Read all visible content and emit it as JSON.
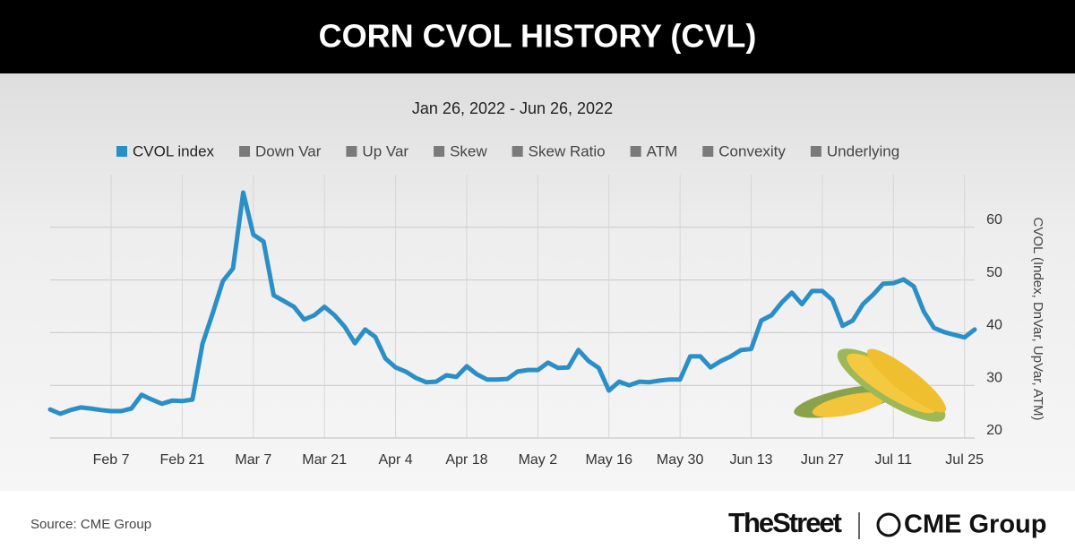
{
  "chart_data": {
    "type": "line",
    "title": "CORN CVOL HISTORY (CVL)",
    "subtitle": "Jan 26, 2022 - Jun 26, 2022",
    "y_label": "CVOL (Index, DnVar, UpVar, ATM)",
    "categories": [
      null,
      null,
      null,
      null,
      null,
      null,
      "Feb 7",
      null,
      null,
      null,
      null,
      null,
      null,
      "Feb 21",
      null,
      null,
      null,
      null,
      null,
      null,
      "Mar 7",
      null,
      null,
      null,
      null,
      null,
      null,
      "Mar 21",
      null,
      null,
      null,
      null,
      null,
      null,
      "Apr 4",
      null,
      null,
      null,
      null,
      null,
      null,
      "Apr 18",
      null,
      null,
      null,
      null,
      null,
      null,
      "May 2",
      null,
      null,
      null,
      null,
      null,
      null,
      "May 16",
      null,
      null,
      null,
      null,
      null,
      null,
      "May 30",
      null,
      null,
      null,
      null,
      null,
      null,
      "Jun 13",
      null,
      null,
      null,
      null,
      null,
      null,
      "Jun 27",
      null,
      null,
      null,
      null,
      null,
      null,
      "Jul 11",
      null,
      null,
      null,
      null,
      null,
      null,
      "Jul 25",
      null
    ],
    "series": [
      {
        "name": "CVOL index",
        "color": "#2b8fc7",
        "values": [
          25.4,
          24.6,
          25.3,
          25.8,
          25.6,
          25.3,
          25.1,
          25.1,
          25.6,
          28.2,
          27.3,
          26.5,
          27.1,
          27,
          27.3,
          37.9,
          43.7,
          49.8,
          52.2,
          66.6,
          58.6,
          57.3,
          47.1,
          46,
          44.9,
          42.5,
          43.3,
          44.9,
          43.3,
          41.1,
          38,
          40.6,
          39.2,
          35.1,
          33.4,
          32.6,
          31.4,
          30.6,
          30.7,
          31.9,
          31.6,
          33.6,
          32.1,
          31.1,
          31.1,
          31.2,
          32.6,
          32.9,
          32.9,
          34.3,
          33.3,
          33.4,
          36.7,
          34.6,
          33.3,
          29,
          30.7,
          30,
          30.7,
          30.6,
          30.9,
          31.1,
          31.1,
          35.5,
          35.5,
          33.4,
          34.6,
          35.5,
          36.7,
          36.9,
          42.3,
          43.3,
          45.7,
          47.6,
          45.4,
          47.9,
          47.9,
          46.2,
          41.3,
          42.3,
          45.4,
          47.2,
          49.3,
          49.4,
          50.1,
          48.8,
          44,
          40.9,
          40.1,
          39.6,
          39.1,
          40.6
        ]
      }
    ],
    "hidden_series": [
      {
        "name": "Down Var",
        "color": "#7a7a7a"
      },
      {
        "name": "Up Var",
        "color": "#7a7a7a"
      },
      {
        "name": "Skew",
        "color": "#7a7a7a"
      },
      {
        "name": "Skew Ratio",
        "color": "#7a7a7a"
      },
      {
        "name": "ATM",
        "color": "#7a7a7a"
      },
      {
        "name": "Convexity",
        "color": "#7a7a7a"
      },
      {
        "name": "Underlying",
        "color": "#7a7a7a"
      }
    ],
    "ylim": [
      20,
      70
    ],
    "yticks": [
      20,
      30,
      40,
      50,
      60
    ],
    "grid": true
  },
  "footer": {
    "source": "Source: CME Group",
    "brand_left": "TheStreet",
    "brand_right": "CME Group"
  }
}
